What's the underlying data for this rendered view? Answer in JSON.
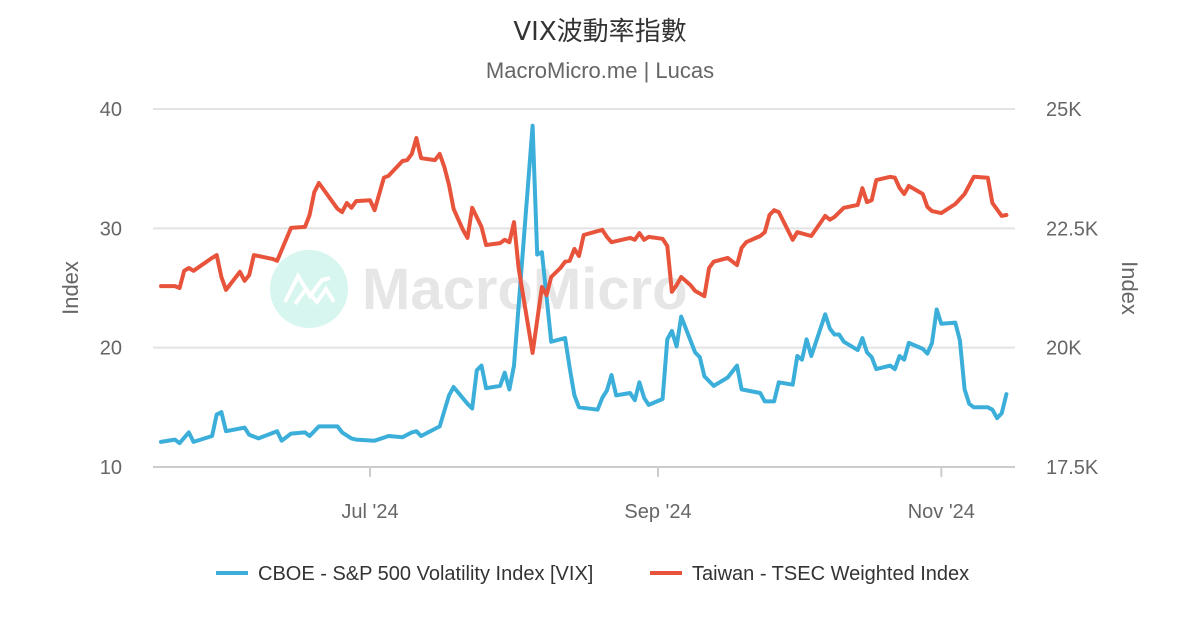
{
  "chart_data": {
    "type": "line",
    "title": "VIX波動率指數",
    "subtitle": "MacroMicro.me | Lucas",
    "watermark": "MacroMicro",
    "grid": true,
    "legend_position": "bottom",
    "x_ticks": [
      {
        "date": "2024-07-01",
        "label": "Jul '24"
      },
      {
        "date": "2024-09-01",
        "label": "Sep '24"
      },
      {
        "date": "2024-11-01",
        "label": "Nov '24"
      }
    ],
    "y_left": {
      "label": "Index",
      "range": [
        10,
        40
      ],
      "ticks": [
        "10",
        "20",
        "30",
        "40"
      ],
      "tick_values": [
        10,
        20,
        30,
        40
      ]
    },
    "y_right": {
      "label": "Index",
      "range": [
        17500,
        25000
      ],
      "ticks": [
        "17.5K",
        "20K",
        "22.5K",
        "25K"
      ],
      "tick_values": [
        17500,
        20000,
        22500,
        25000
      ]
    },
    "series": [
      {
        "name": "CBOE - S&P 500 Volatility Index [VIX]",
        "axis": "left",
        "color": "#3bafda",
        "points": [
          [
            "2024-05-17",
            12.1
          ],
          [
            "2024-05-20",
            12.3
          ],
          [
            "2024-05-21",
            12.0
          ],
          [
            "2024-05-23",
            12.9
          ],
          [
            "2024-05-24",
            12.1
          ],
          [
            "2024-05-28",
            12.6
          ],
          [
            "2024-05-29",
            14.4
          ],
          [
            "2024-05-30",
            14.6
          ],
          [
            "2024-05-31",
            13.0
          ],
          [
            "2024-06-04",
            13.3
          ],
          [
            "2024-06-05",
            12.7
          ],
          [
            "2024-06-07",
            12.4
          ],
          [
            "2024-06-11",
            13.0
          ],
          [
            "2024-06-12",
            12.2
          ],
          [
            "2024-06-14",
            12.8
          ],
          [
            "2024-06-17",
            12.9
          ],
          [
            "2024-06-18",
            12.6
          ],
          [
            "2024-06-20",
            13.4
          ],
          [
            "2024-06-24",
            13.4
          ],
          [
            "2024-06-25",
            12.9
          ],
          [
            "2024-06-27",
            12.4
          ],
          [
            "2024-06-28",
            12.3
          ],
          [
            "2024-07-02",
            12.2
          ],
          [
            "2024-07-05",
            12.6
          ],
          [
            "2024-07-08",
            12.5
          ],
          [
            "2024-07-10",
            12.9
          ],
          [
            "2024-07-11",
            13.0
          ],
          [
            "2024-07-12",
            12.6
          ],
          [
            "2024-07-16",
            13.4
          ],
          [
            "2024-07-18",
            16.0
          ],
          [
            "2024-07-19",
            16.7
          ],
          [
            "2024-07-22",
            15.3
          ],
          [
            "2024-07-23",
            14.9
          ],
          [
            "2024-07-24",
            18.1
          ],
          [
            "2024-07-25",
            18.5
          ],
          [
            "2024-07-26",
            16.6
          ],
          [
            "2024-07-29",
            16.8
          ],
          [
            "2024-07-30",
            17.9
          ],
          [
            "2024-07-31",
            16.5
          ],
          [
            "2024-08-01",
            18.5
          ],
          [
            "2024-08-05",
            38.6
          ],
          [
            "2024-08-06",
            27.8
          ],
          [
            "2024-08-07",
            28.0
          ],
          [
            "2024-08-09",
            20.5
          ],
          [
            "2024-08-12",
            20.8
          ],
          [
            "2024-08-13",
            18.3
          ],
          [
            "2024-08-14",
            16.0
          ],
          [
            "2024-08-15",
            15.0
          ],
          [
            "2024-08-19",
            14.8
          ],
          [
            "2024-08-20",
            15.8
          ],
          [
            "2024-08-21",
            16.4
          ],
          [
            "2024-08-22",
            17.7
          ],
          [
            "2024-08-23",
            16.0
          ],
          [
            "2024-08-26",
            16.2
          ],
          [
            "2024-08-27",
            15.6
          ],
          [
            "2024-08-28",
            17.1
          ],
          [
            "2024-08-29",
            15.8
          ],
          [
            "2024-08-30",
            15.2
          ],
          [
            "2024-09-02",
            15.7
          ],
          [
            "2024-09-03",
            20.7
          ],
          [
            "2024-09-04",
            21.4
          ],
          [
            "2024-09-05",
            20.1
          ],
          [
            "2024-09-06",
            22.6
          ],
          [
            "2024-09-09",
            19.6
          ],
          [
            "2024-09-10",
            19.2
          ],
          [
            "2024-09-11",
            17.6
          ],
          [
            "2024-09-13",
            16.8
          ],
          [
            "2024-09-16",
            17.5
          ],
          [
            "2024-09-18",
            18.5
          ],
          [
            "2024-09-19",
            16.5
          ],
          [
            "2024-09-23",
            16.2
          ],
          [
            "2024-09-24",
            15.5
          ],
          [
            "2024-09-26",
            15.5
          ],
          [
            "2024-09-27",
            17.1
          ],
          [
            "2024-09-30",
            16.9
          ],
          [
            "2024-10-01",
            19.3
          ],
          [
            "2024-10-02",
            19.0
          ],
          [
            "2024-10-03",
            20.7
          ],
          [
            "2024-10-04",
            19.3
          ],
          [
            "2024-10-07",
            22.8
          ],
          [
            "2024-10-08",
            21.6
          ],
          [
            "2024-10-09",
            21.1
          ],
          [
            "2024-10-10",
            21.1
          ],
          [
            "2024-10-11",
            20.5
          ],
          [
            "2024-10-14",
            19.8
          ],
          [
            "2024-10-15",
            20.8
          ],
          [
            "2024-10-16",
            19.6
          ],
          [
            "2024-10-17",
            19.2
          ],
          [
            "2024-10-18",
            18.2
          ],
          [
            "2024-10-21",
            18.5
          ],
          [
            "2024-10-22",
            18.2
          ],
          [
            "2024-10-23",
            19.3
          ],
          [
            "2024-10-24",
            19.0
          ],
          [
            "2024-10-25",
            20.4
          ],
          [
            "2024-10-28",
            19.9
          ],
          [
            "2024-10-29",
            19.5
          ],
          [
            "2024-10-30",
            20.4
          ],
          [
            "2024-10-31",
            23.2
          ],
          [
            "2024-11-01",
            22.0
          ],
          [
            "2024-11-04",
            22.1
          ],
          [
            "2024-11-05",
            20.6
          ],
          [
            "2024-11-06",
            16.5
          ],
          [
            "2024-11-07",
            15.3
          ],
          [
            "2024-11-08",
            15.0
          ],
          [
            "2024-11-11",
            15.0
          ],
          [
            "2024-11-12",
            14.8
          ],
          [
            "2024-11-13",
            14.1
          ],
          [
            "2024-11-14",
            14.5
          ],
          [
            "2024-11-15",
            16.1
          ]
        ]
      },
      {
        "name": "Taiwan - TSEC Weighted Index",
        "axis": "right",
        "color": "#e8533b",
        "points": [
          [
            "2024-05-17",
            21290
          ],
          [
            "2024-05-20",
            21290
          ],
          [
            "2024-05-21",
            21250
          ],
          [
            "2024-05-22",
            21610
          ],
          [
            "2024-05-23",
            21670
          ],
          [
            "2024-05-24",
            21610
          ],
          [
            "2024-05-28",
            21880
          ],
          [
            "2024-05-29",
            21940
          ],
          [
            "2024-05-30",
            21480
          ],
          [
            "2024-05-31",
            21210
          ],
          [
            "2024-06-03",
            21590
          ],
          [
            "2024-06-04",
            21400
          ],
          [
            "2024-06-05",
            21520
          ],
          [
            "2024-06-06",
            21940
          ],
          [
            "2024-06-10",
            21860
          ],
          [
            "2024-06-11",
            21820
          ],
          [
            "2024-06-14",
            22510
          ],
          [
            "2024-06-17",
            22530
          ],
          [
            "2024-06-18",
            22780
          ],
          [
            "2024-06-19",
            23260
          ],
          [
            "2024-06-20",
            23450
          ],
          [
            "2024-06-24",
            22910
          ],
          [
            "2024-06-25",
            22840
          ],
          [
            "2024-06-26",
            23030
          ],
          [
            "2024-06-27",
            22930
          ],
          [
            "2024-06-28",
            23070
          ],
          [
            "2024-07-01",
            23090
          ],
          [
            "2024-07-02",
            22880
          ],
          [
            "2024-07-04",
            23560
          ],
          [
            "2024-07-05",
            23600
          ],
          [
            "2024-07-08",
            23910
          ],
          [
            "2024-07-09",
            23930
          ],
          [
            "2024-07-10",
            24060
          ],
          [
            "2024-07-11",
            24390
          ],
          [
            "2024-07-12",
            23970
          ],
          [
            "2024-07-15",
            23930
          ],
          [
            "2024-07-16",
            24060
          ],
          [
            "2024-07-17",
            23790
          ],
          [
            "2024-07-18",
            23410
          ],
          [
            "2024-07-19",
            22910
          ],
          [
            "2024-07-21",
            22470
          ],
          [
            "2024-07-22",
            22300
          ],
          [
            "2024-07-23",
            22930
          ],
          [
            "2024-07-25",
            22530
          ],
          [
            "2024-07-26",
            22150
          ],
          [
            "2024-07-29",
            22190
          ],
          [
            "2024-07-30",
            22260
          ],
          [
            "2024-07-31",
            22210
          ],
          [
            "2024-08-01",
            22630
          ],
          [
            "2024-08-02",
            21670
          ],
          [
            "2024-08-05",
            19890
          ],
          [
            "2024-08-07",
            21270
          ],
          [
            "2024-08-08",
            21100
          ],
          [
            "2024-08-09",
            21480
          ],
          [
            "2024-08-11",
            21670
          ],
          [
            "2024-08-12",
            21800
          ],
          [
            "2024-08-13",
            21820
          ],
          [
            "2024-08-14",
            22070
          ],
          [
            "2024-08-15",
            21920
          ],
          [
            "2024-08-16",
            22360
          ],
          [
            "2024-08-20",
            22470
          ],
          [
            "2024-08-21",
            22320
          ],
          [
            "2024-08-22",
            22210
          ],
          [
            "2024-08-26",
            22300
          ],
          [
            "2024-08-27",
            22260
          ],
          [
            "2024-08-28",
            22400
          ],
          [
            "2024-08-29",
            22260
          ],
          [
            "2024-08-30",
            22320
          ],
          [
            "2024-09-02",
            22280
          ],
          [
            "2024-09-03",
            22130
          ],
          [
            "2024-09-04",
            21170
          ],
          [
            "2024-09-05",
            21310
          ],
          [
            "2024-09-06",
            21480
          ],
          [
            "2024-09-08",
            21310
          ],
          [
            "2024-09-09",
            21190
          ],
          [
            "2024-09-11",
            21080
          ],
          [
            "2024-09-12",
            21670
          ],
          [
            "2024-09-13",
            21800
          ],
          [
            "2024-09-16",
            21880
          ],
          [
            "2024-09-18",
            21730
          ],
          [
            "2024-09-19",
            22090
          ],
          [
            "2024-09-20",
            22210
          ],
          [
            "2024-09-23",
            22340
          ],
          [
            "2024-09-24",
            22420
          ],
          [
            "2024-09-25",
            22780
          ],
          [
            "2024-09-26",
            22880
          ],
          [
            "2024-09-27",
            22840
          ],
          [
            "2024-09-30",
            22260
          ],
          [
            "2024-10-01",
            22420
          ],
          [
            "2024-10-04",
            22340
          ],
          [
            "2024-10-07",
            22760
          ],
          [
            "2024-10-08",
            22680
          ],
          [
            "2024-10-09",
            22740
          ],
          [
            "2024-10-11",
            22930
          ],
          [
            "2024-10-14",
            22990
          ],
          [
            "2024-10-15",
            23340
          ],
          [
            "2024-10-16",
            23050
          ],
          [
            "2024-10-17",
            23090
          ],
          [
            "2024-10-18",
            23510
          ],
          [
            "2024-10-21",
            23580
          ],
          [
            "2024-10-22",
            23560
          ],
          [
            "2024-10-23",
            23350
          ],
          [
            "2024-10-24",
            23220
          ],
          [
            "2024-10-25",
            23390
          ],
          [
            "2024-10-28",
            23220
          ],
          [
            "2024-10-29",
            22950
          ],
          [
            "2024-10-30",
            22860
          ],
          [
            "2024-11-01",
            22820
          ],
          [
            "2024-11-04",
            23010
          ],
          [
            "2024-11-06",
            23220
          ],
          [
            "2024-11-08",
            23580
          ],
          [
            "2024-11-11",
            23560
          ],
          [
            "2024-11-12",
            23030
          ],
          [
            "2024-11-14",
            22760
          ],
          [
            "2024-11-15",
            22780
          ]
        ]
      }
    ]
  }
}
